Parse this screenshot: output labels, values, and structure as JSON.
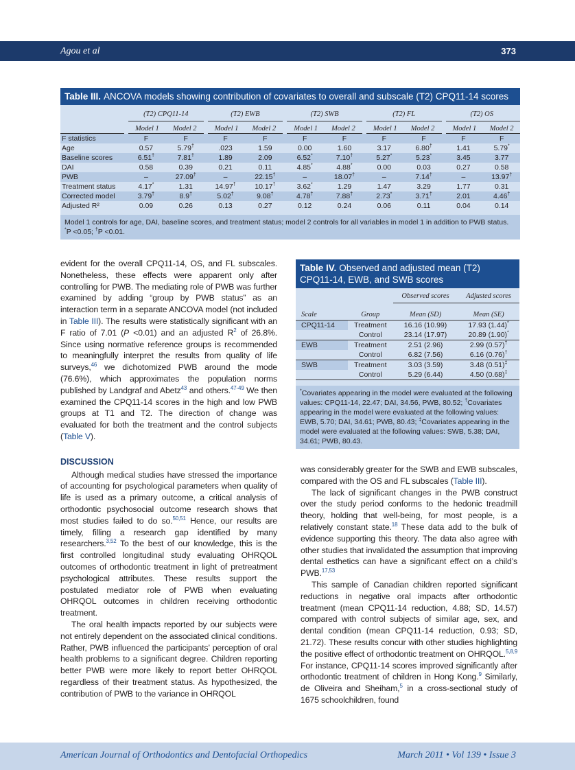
{
  "header": {
    "running_title": "Agou et al",
    "page": "373"
  },
  "table3": {
    "label": "Table III.",
    "title": "ANCOVA models showing contribution of covariates to overall and subscale (T2) CPQ11-14 scores",
    "groups": [
      "(T2) CPQ11-14",
      "(T2) EWB",
      "(T2) SWB",
      "(T2) FL",
      "(T2) OS"
    ],
    "models": [
      "Model 1",
      "Model 2",
      "Model 1",
      "Model 2",
      "Model 1",
      "Model 2",
      "Model 1",
      "Model 2",
      "Model 1",
      "Model 2"
    ],
    "rows": [
      {
        "label": "F statistics",
        "cells": [
          "F",
          "F",
          "F",
          "F",
          "F",
          "F",
          "F",
          "F",
          "F",
          "F"
        ]
      },
      {
        "label": "Age",
        "cells": [
          "0.57",
          "5.79†",
          ".023",
          "1.59",
          "0.00",
          "1.60",
          "3.17",
          "6.80†",
          "1.41",
          "5.79*"
        ]
      },
      {
        "label": "Baseline scores",
        "cells": [
          "6.51†",
          "7.81†",
          "1.89",
          "2.09",
          "6.52*",
          "7.10†",
          "5.27*",
          "5.23*",
          "3.45",
          "3.77"
        ]
      },
      {
        "label": "DAI",
        "cells": [
          "0.58",
          "0.39",
          "0.21",
          "0.11",
          "4.85*",
          "4.88*",
          "0.00",
          "0.03",
          "0.27",
          "0.58"
        ]
      },
      {
        "label": "PWB",
        "cells": [
          "–",
          "27.09†",
          "–",
          "22.15†",
          "–",
          "18.07†",
          "–",
          "7.14†",
          "–",
          "13.97†"
        ]
      },
      {
        "label": "Treatment status",
        "cells": [
          "4.17*",
          "1.31",
          "14.97†",
          "10.17†",
          "3.62*",
          "1.29",
          "1.47",
          "3.29",
          "1.77",
          "0.31"
        ]
      },
      {
        "label": "Corrected model",
        "cells": [
          "3.79†",
          "8.9†",
          "5.02†",
          "9.08†",
          "4.78†",
          "7.88†",
          "2.73*",
          "3.71†",
          "2.01",
          "4.46†"
        ]
      },
      {
        "label": "Adjusted R²",
        "cells": [
          "0.09",
          "0.26",
          "0.13",
          "0.27",
          "0.12",
          "0.24",
          "0.06",
          "0.11",
          "0.04",
          "0.14"
        ]
      }
    ],
    "notes": [
      "Model 1 controls for age, DAI, baseline scores, and treatment status; model 2 controls for all variables in model 1 in addition to PWB status.",
      "*P <0.05; †P <0.01."
    ]
  },
  "table4": {
    "label": "Table IV.",
    "title": "Observed and adjusted mean (T2) CPQ11-14, EWB, and SWB scores",
    "groups": [
      "Observed scores",
      "Adjusted scores"
    ],
    "columns": [
      "Scale",
      "Group",
      "Mean (SD)",
      "Mean (SE)"
    ],
    "rows": [
      [
        "CPQ11-14",
        "Treatment",
        "16.16 (10.99)",
        "17.93 (1.44)*"
      ],
      [
        null,
        "Control",
        "23.14 (17.97)",
        "20.89 (1.90)*"
      ],
      [
        "EWB",
        "Treatment",
        "2.51 (2.96)",
        "2.99 (0.57)†"
      ],
      [
        null,
        "Control",
        "6.82 (7.56)",
        "6.16 (0.76)†"
      ],
      [
        "SWB",
        "Treatment",
        "3.03 (3.59)",
        "3.48 (0.51)‡"
      ],
      [
        null,
        "Control",
        "5.29 (6.44)",
        "4.50 (0.68)‡"
      ]
    ],
    "note": "*Covariates appearing in the model were evaluated at the following values: CPQ11-14, 22.47; DAI, 34.56, PWB, 80.52; †Covariates appearing in the model were evaluated at the following values: EWB, 5.70; DAI, 34.61; PWB, 80.43; ‡Covariates appearing in the model were evaluated at the following values: SWB, 5.38; DAI, 34.61; PWB, 80.43."
  },
  "body": {
    "heading": "DISCUSSION",
    "left": [
      [
        "evident for the overall CPQ11-14, OS, and FL subscales. Nonetheless, these effects were apparent only after controlling for PWB. The mediating role of PWB was further examined by adding “group by PWB status” as an interaction term in a separate ANCOVA model (not included in ",
        {
          "ref": "Table III"
        },
        "). The results were statistically significant with an F ratio of 7.01 (",
        {
          "em": "P"
        },
        " <0.01) and an adjusted R",
        {
          "sup": "2"
        },
        " of 26.8%. Since using normative reference groups is recommended to meaningfully interpret the results from quality of life surveys,",
        {
          "sup": "46"
        },
        " we dichotomized PWB around the mode (76.6%), which approximates the population norms published by Landgraf and Abetz",
        {
          "sup": "43"
        },
        " and others.",
        {
          "sup": "47-49"
        },
        " We then examined the CPQ11-14 scores in the high and low PWB groups at T1 and T2. The direction of change was evaluated for both the treatment and the control subjects (",
        {
          "ref": "Table V"
        },
        ")."
      ],
      [
        "Although medical studies have stressed the importance of accounting for psychological parameters when quality of life is used as a primary outcome, a critical analysis of orthodontic psychosocial outcome research shows that most studies failed to do so.",
        {
          "sup": "50,51"
        },
        " Hence, our results are timely, filling a research gap identified by many researchers.",
        {
          "sup": "3,52"
        },
        " To the best of our knowledge, this is the first controlled longitudinal study evaluating OHRQOL outcomes of orthodontic treatment in light of pretreatment psychological attributes. These results support the postulated mediator role of PWB when evaluating OHRQOL outcomes in children receiving orthodontic treatment."
      ],
      [
        "The oral health impacts reported by our subjects were not entirely dependent on the associated clinical conditions. Rather, PWB influenced the participants’ perception of oral health problems to a significant degree. Children reporting better PWB were more likely to report better OHRQOL regardless of their treatment status. As hypothesized, the contribution of PWB to the variance in OHRQOL"
      ]
    ],
    "right": [
      [
        "was considerably greater for the SWB and EWB subscales, compared with the OS and FL subscales (",
        {
          "ref": "Table III"
        },
        ")."
      ],
      [
        "The lack of significant changes in the PWB construct over the study period conforms to the hedonic treadmill theory, holding that well-being, for most people, is a relatively constant state.",
        {
          "sup": "18"
        },
        " These data add to the bulk of evidence supporting this theory. The data also agree with other studies that invalidated the assumption that improving dental esthetics can have a significant effect on a child’s PWB.",
        {
          "sup": "17,53"
        }
      ],
      [
        "This sample of Canadian children reported significant reductions in negative oral impacts after orthodontic treatment (mean CPQ11-14 reduction, 4.88; SD, 14.57) compared with control subjects of similar age, sex, and dental condition (mean CPQ11-14 reduction, 0.93; SD, 21.72). These results concur with other studies highlighting the positive effect of orthodontic treatment on OHRQOL.",
        {
          "sup": "5,8,9"
        },
        " For instance, CPQ11-14 scores improved significantly after orthodontic treatment of children in Hong Kong.",
        {
          "sup": "9"
        },
        " Similarly, de Oliveira and Sheiham,",
        {
          "sup": "5"
        },
        " in a cross-sectional study of 1675 schoolchildren, found"
      ]
    ]
  },
  "footer": {
    "journal": "American Journal of Orthodontics and Dentofacial Orthopedics",
    "issue": "March 2011 • Vol 139 • Issue 3"
  }
}
